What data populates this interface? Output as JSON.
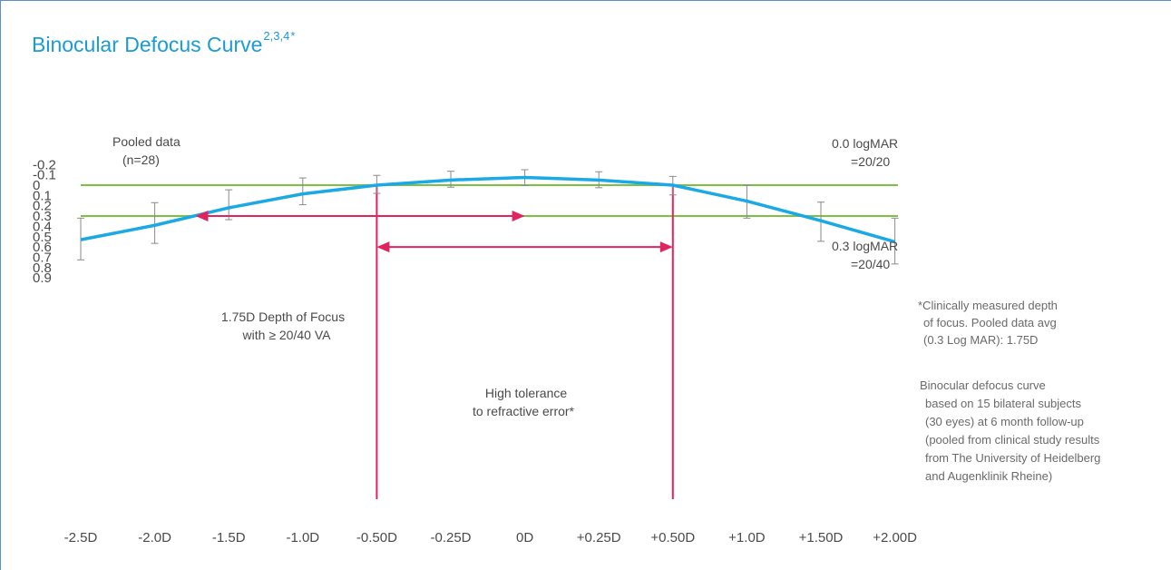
{
  "title": {
    "text": "Binocular Defocus Curve",
    "refs": "2,3,4",
    "star": "*"
  },
  "chart_data": {
    "type": "line",
    "x_tick_labels": [
      "-2.5D",
      "-2.0D",
      "-1.5D",
      "-1.0D",
      "-0.50D",
      "-0.25D",
      "0D",
      "+0.25D",
      "+0.50D",
      "+1.0D",
      "+1.50D",
      "+2.00D"
    ],
    "y_tick_labels": [
      "-0.2",
      "-0.1",
      "0",
      "0.1",
      "0.2",
      "0.3",
      "0.4",
      "0.5",
      "0.6",
      "0.7",
      "0.8",
      "0.9"
    ],
    "y_ticks": [
      -0.2,
      -0.1,
      0,
      0.1,
      0.2,
      0.3,
      0.4,
      0.5,
      0.6,
      0.7,
      0.8,
      0.9
    ],
    "ylim": [
      -0.2,
      0.9
    ],
    "y_inverted": true,
    "grid": false,
    "series": [
      {
        "values": [
          0.53,
          0.39,
          0.22,
          0.085,
          0.0,
          -0.05,
          -0.075,
          -0.05,
          0.0,
          0.155,
          0.345,
          0.55
        ],
        "err_low": [
          0.32,
          0.17,
          0.045,
          -0.07,
          -0.095,
          -0.135,
          -0.15,
          -0.13,
          -0.085,
          0.0,
          0.165,
          0.32
        ],
        "err_high": [
          0.725,
          0.565,
          0.335,
          0.19,
          0.08,
          0.02,
          0.005,
          0.025,
          0.095,
          0.32,
          0.545,
          0.765
        ],
        "color": "#1aa9e6"
      }
    ],
    "reference_lines": [
      {
        "y": 0.0,
        "label_line1": "0.0 logMAR",
        "label_line2": "=20/20",
        "color": "#7cc142"
      },
      {
        "y": 0.3,
        "label_line1": "0.3 logMAR",
        "label_line2": "=20/40",
        "color": "#7cc142"
      }
    ],
    "vertical_markers": [
      {
        "x_index": 4,
        "color": "#e0245e"
      },
      {
        "x_index": 8,
        "color": "#e0245e"
      }
    ],
    "arrows": [
      {
        "from_x": 1.55,
        "to_x": 6.0,
        "y": 0.3,
        "label_line1": "1.75D Depth of Focus",
        "label_line2": "with ≥ 20/40 VA",
        "color": "#e0245e"
      },
      {
        "from_x": 4.0,
        "to_x": 8.0,
        "y": 0.6,
        "label_line1": "High tolerance",
        "label_line2": "to refractive error*",
        "color": "#e0245e"
      }
    ],
    "annotations": {
      "pooled_line1": "Pooled data",
      "pooled_line2": "(n=28)",
      "footnote_lines": [
        "*Clinically measured depth",
        "of focus. Pooled data avg",
        "(0.3 Log MAR): 1.75D"
      ],
      "study_lines": [
        "Binocular defocus curve",
        "based on 15 bilateral subjects",
        "(30 eyes) at 6 month follow-up",
        "(pooled from clinical study results",
        "from The University of Heidelberg",
        "and Augenklinik Rheine)"
      ]
    }
  }
}
